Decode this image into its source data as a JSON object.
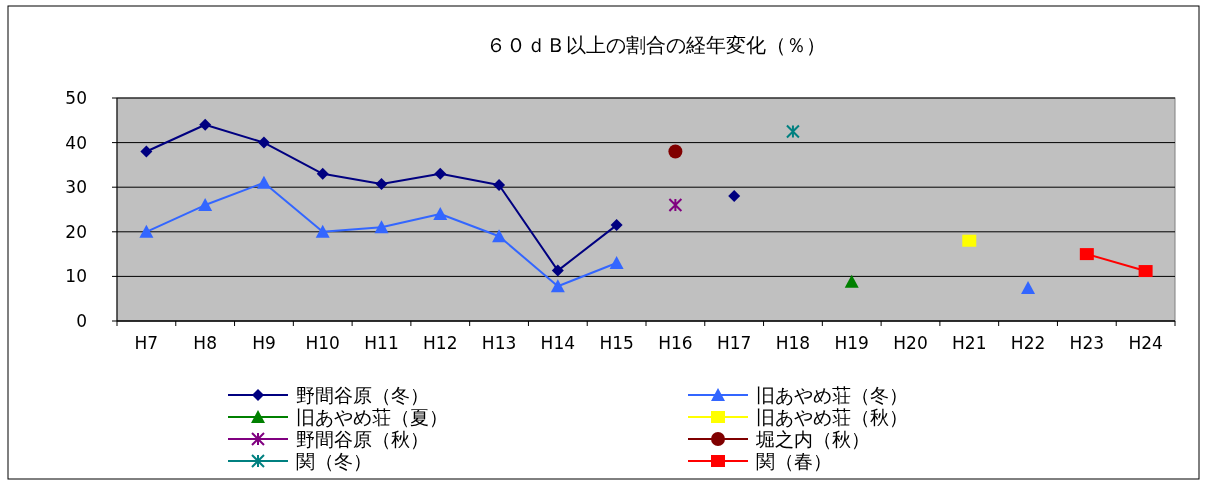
{
  "chart_data": {
    "type": "line",
    "title": "６０ｄＢ以上の割合の経年変化（％）",
    "categories": [
      "H7",
      "H8",
      "H9",
      "H10",
      "H11",
      "H12",
      "H13",
      "H14",
      "H15",
      "H16",
      "H17",
      "H18",
      "H19",
      "H20",
      "H21",
      "H22",
      "H23",
      "H24"
    ],
    "ylim": [
      0,
      50
    ],
    "yticks": [
      0,
      10,
      20,
      30,
      40,
      50
    ],
    "grid": "y",
    "legend": "bottom",
    "line_style": "solid",
    "series": [
      {
        "name": "野間谷原（冬）",
        "color": "#000080",
        "marker": "diamond",
        "values": [
          38,
          44,
          40,
          33,
          30.7,
          33,
          30.5,
          11.3,
          21.5,
          null,
          28,
          null,
          null,
          null,
          null,
          null,
          null,
          null
        ]
      },
      {
        "name": "旧あやめ荘（冬）",
        "color": "#3366ff",
        "marker": "triangle",
        "values": [
          20,
          26,
          31,
          20,
          21,
          24,
          19,
          7.8,
          13,
          null,
          null,
          null,
          null,
          null,
          null,
          7.4,
          null,
          null
        ]
      },
      {
        "name": "旧あやめ荘（夏）",
        "color": "#008000",
        "marker": "triangle",
        "values": [
          null,
          null,
          null,
          null,
          null,
          null,
          null,
          null,
          null,
          null,
          null,
          null,
          8.8,
          null,
          null,
          null,
          null,
          null
        ]
      },
      {
        "name": "旧あやめ荘（秋）",
        "color": "#ffff00",
        "marker": "square",
        "values": [
          null,
          null,
          null,
          null,
          null,
          null,
          null,
          null,
          null,
          null,
          null,
          null,
          null,
          null,
          18,
          null,
          null,
          null
        ]
      },
      {
        "name": "野間谷原（秋）",
        "color": "#800080",
        "marker": "cross",
        "values": [
          null,
          null,
          null,
          null,
          null,
          null,
          null,
          null,
          null,
          26,
          null,
          null,
          null,
          null,
          null,
          null,
          null,
          null
        ]
      },
      {
        "name": "堀之内（秋）",
        "color": "#800000",
        "marker": "circle",
        "values": [
          null,
          null,
          null,
          null,
          null,
          null,
          null,
          null,
          null,
          38,
          null,
          null,
          null,
          null,
          null,
          null,
          null,
          null
        ]
      },
      {
        "name": "関（冬）",
        "color": "#008080",
        "marker": "cross",
        "values": [
          null,
          null,
          null,
          null,
          null,
          null,
          null,
          null,
          null,
          null,
          null,
          42.5,
          null,
          null,
          null,
          null,
          null,
          null
        ]
      },
      {
        "name": "関（春）",
        "color": "#ff0000",
        "marker": "square",
        "values": [
          null,
          null,
          null,
          null,
          null,
          null,
          null,
          null,
          null,
          null,
          null,
          null,
          null,
          null,
          null,
          null,
          15,
          11.2
        ]
      }
    ]
  }
}
